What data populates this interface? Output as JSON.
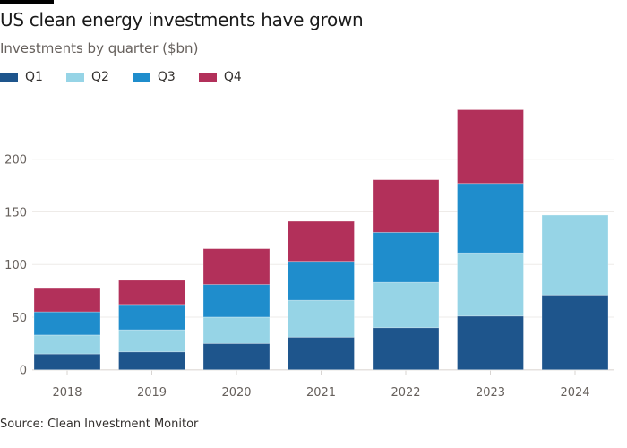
{
  "header": {
    "title": "US clean energy investments have grown",
    "subtitle": "Investments by quarter ($bn)"
  },
  "footer": {
    "source": "Source: Clean Investment Monitor"
  },
  "chart_data": {
    "type": "bar",
    "stacked": true,
    "title": "US clean energy investments have grown",
    "subtitle": "Investments by quarter ($bn)",
    "xlabel": "",
    "ylabel": "",
    "categories": [
      "2018",
      "2019",
      "2020",
      "2021",
      "2022",
      "2023",
      "2024"
    ],
    "series": [
      {
        "name": "Q1",
        "color": "#1e558c",
        "values": [
          15,
          17,
          25,
          31,
          40,
          51,
          71
        ]
      },
      {
        "name": "Q2",
        "color": "#96d4e6",
        "values": [
          18,
          21,
          25,
          35,
          43,
          60,
          76
        ]
      },
      {
        "name": "Q3",
        "color": "#1f8dcc",
        "values": [
          22,
          24,
          31,
          37,
          47.5,
          66,
          null
        ]
      },
      {
        "name": "Q4",
        "color": "#b2305a",
        "values": [
          23,
          23,
          34,
          38,
          50,
          70,
          null
        ]
      }
    ],
    "ylim": [
      0,
      250
    ],
    "yticks": [
      "0",
      "50",
      "100",
      "150",
      "200"
    ],
    "grid": true,
    "legend": "top-left"
  }
}
